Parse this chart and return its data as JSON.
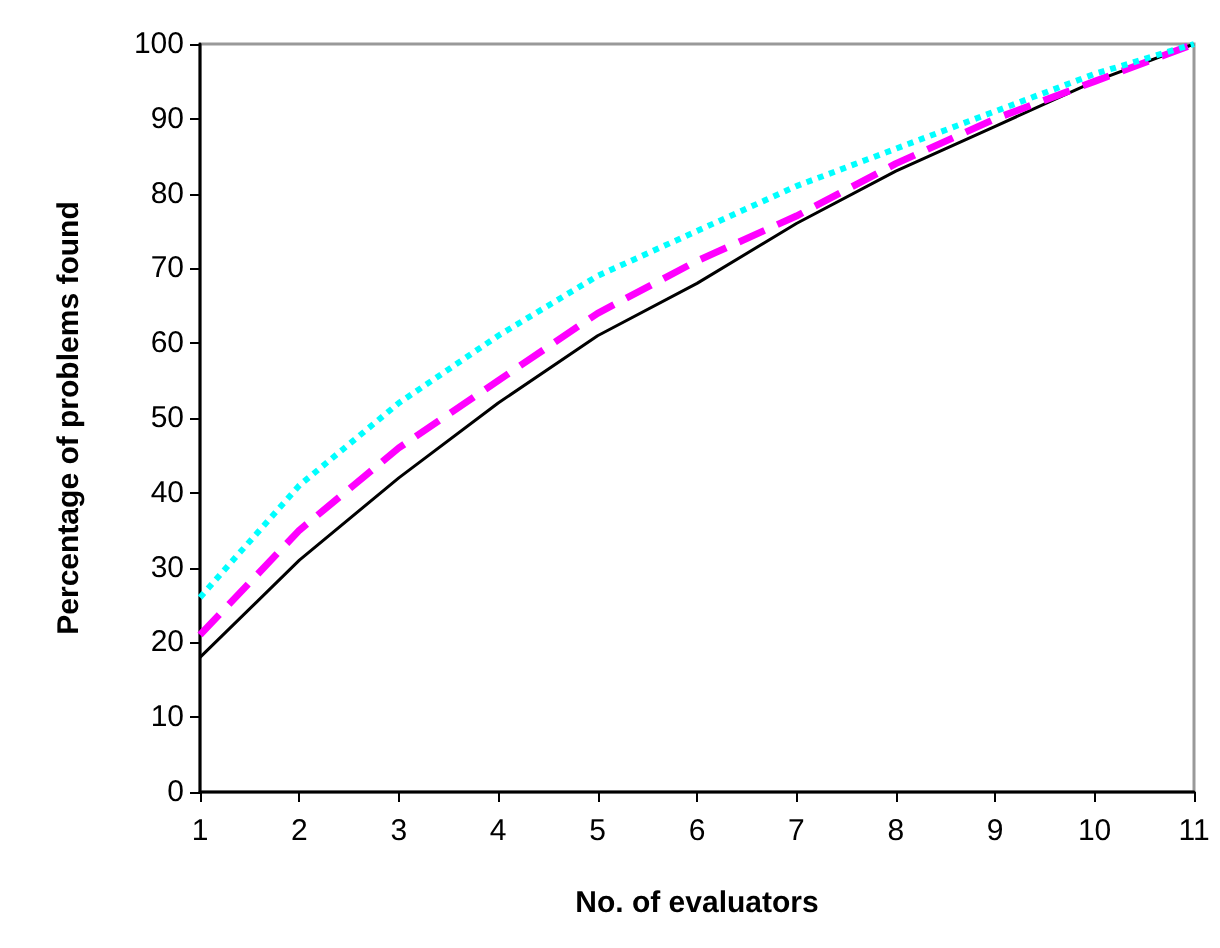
{
  "chart_data": {
    "type": "line",
    "xlabel": "No. of evaluators",
    "ylabel": "Percentage of problems found",
    "x": [
      1,
      2,
      3,
      4,
      5,
      6,
      7,
      8,
      9,
      10,
      11
    ],
    "series": [
      {
        "color": "#000000",
        "line_style": "solid",
        "values": [
          18,
          31,
          42,
          52,
          61,
          68,
          76,
          83,
          89,
          95,
          100
        ]
      },
      {
        "color": "#ff00ff",
        "line_style": "dashed",
        "values": [
          21,
          35,
          46,
          55,
          64,
          71,
          77,
          84,
          90,
          95,
          100
        ]
      },
      {
        "color": "#00ffff",
        "line_style": "dotted",
        "values": [
          26,
          41,
          52,
          61,
          69,
          75,
          81,
          86,
          91,
          96,
          100
        ]
      }
    ],
    "xlim": [
      1,
      11
    ],
    "xticks": [
      1,
      2,
      3,
      4,
      5,
      6,
      7,
      8,
      9,
      10,
      11
    ],
    "ylim": [
      0,
      100
    ],
    "yticks": [
      0,
      10,
      20,
      30,
      40,
      50,
      60,
      70,
      80,
      90,
      100
    ],
    "grid": false,
    "marker": "none"
  }
}
